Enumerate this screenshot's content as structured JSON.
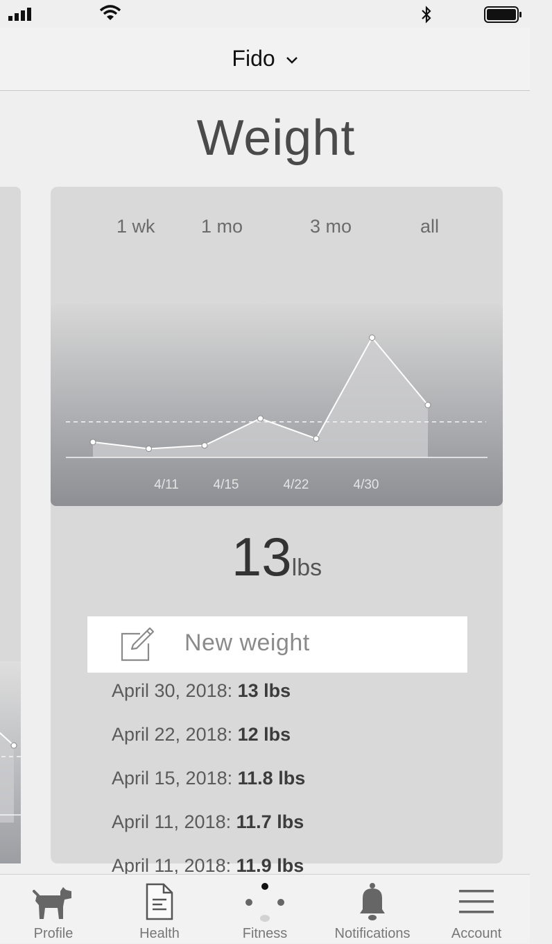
{
  "status_bar": {
    "icons": [
      "signal-icon",
      "wifi-icon",
      "bluetooth-icon",
      "battery-icon"
    ]
  },
  "header": {
    "pet_name": "Fido"
  },
  "page": {
    "title": "Weight"
  },
  "ranges": [
    "1 wk",
    "1 mo",
    "3 mo",
    "all"
  ],
  "chart_data": {
    "type": "line",
    "x_tick_labels": [
      "4/11",
      "4/15",
      "4/22",
      "4/30"
    ],
    "series": [
      {
        "values": [
          11.9,
          11.7,
          11.8,
          12.6,
          12.0,
          15.0,
          13.0
        ]
      }
    ],
    "reference_line": 12.5,
    "ylim": [
      10.0,
      16.0
    ],
    "grid": false,
    "colors": {
      "line": "#ffffff",
      "area": "#cfcfd1"
    }
  },
  "current": {
    "value": "13",
    "unit": "lbs"
  },
  "new_weight": {
    "label": "New weight"
  },
  "log": [
    {
      "date": "April 30, 2018:",
      "value": "13 lbs"
    },
    {
      "date": "April 22, 2018:",
      "value": "12 lbs"
    },
    {
      "date": "April 15, 2018:",
      "value": "11.8 lbs"
    },
    {
      "date": "April 11, 2018:",
      "value": "11.7 lbs"
    },
    {
      "date": "April 11, 2018:",
      "value": "11.9 lbs"
    }
  ],
  "tabs": [
    {
      "label": "Profile",
      "icon": "dog-icon"
    },
    {
      "label": "Health",
      "icon": "document-icon"
    },
    {
      "label": "Fitness",
      "icon": "fitness-dots-icon"
    },
    {
      "label": "Notifications",
      "icon": "bell-icon"
    },
    {
      "label": "Account",
      "icon": "menu-icon"
    }
  ]
}
